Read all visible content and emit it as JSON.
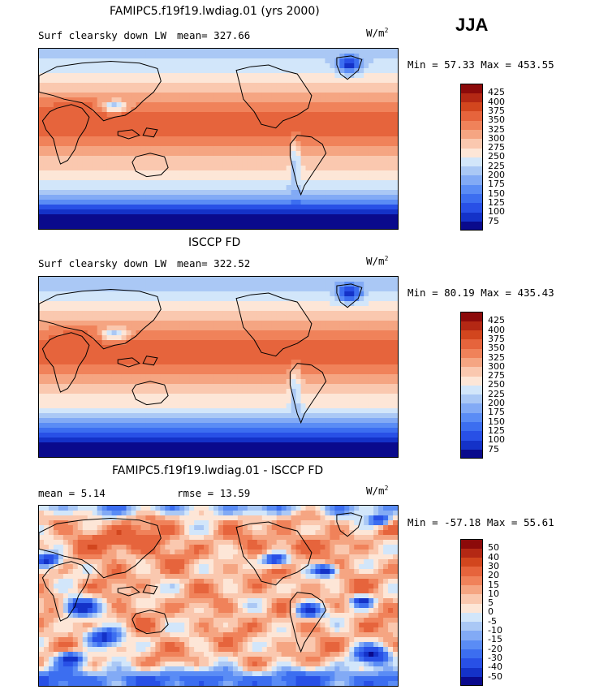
{
  "season": "JJA",
  "units_main": "W/m",
  "units_sup": "2",
  "panels": [
    {
      "title": "FAMIPC5.f19f19.lwdiag.01 (yrs 2000)",
      "variable": "Surf clearsky down LW",
      "mean_label": "mean=",
      "mean_value": "327.66",
      "minmax": "Min =  57.33 Max = 453.55"
    },
    {
      "title": "ISCCP FD",
      "variable": "Surf clearsky down LW",
      "mean_label": "mean=",
      "mean_value": "322.52",
      "minmax": "Min =  80.19 Max = 435.43"
    },
    {
      "title": "FAMIPC5.f19f19.lwdiag.01 - ISCCP FD",
      "mean_label": "mean =",
      "mean_value": "5.14",
      "rmse_label": "rmse =",
      "rmse_value": "13.59",
      "minmax": "Min = -57.18 Max =  55.61"
    }
  ],
  "chart_data": [
    {
      "type": "heatmap",
      "title": "FAMIPC5.f19f19.lwdiag.01 (yrs 2000)",
      "variable": "Surf clearsky down LW",
      "units": "W/m2",
      "mean": 327.66,
      "min": 57.33,
      "max": 453.55,
      "colorbar_levels": [
        75,
        100,
        125,
        150,
        175,
        200,
        225,
        250,
        275,
        300,
        325,
        350,
        375,
        400,
        425
      ],
      "colors": [
        "#0a0a8c",
        "#1432c8",
        "#2850e6",
        "#3c6ef0",
        "#5a8cf5",
        "#82aaf5",
        "#aac8f5",
        "#d2e6fa",
        "#fde6d7",
        "#fac8af",
        "#f5a582",
        "#f0825a",
        "#e6643c",
        "#d2461e",
        "#b42814",
        "#8c0a0a"
      ]
    },
    {
      "type": "heatmap",
      "title": "ISCCP FD",
      "variable": "Surf clearsky down LW",
      "units": "W/m2",
      "mean": 322.52,
      "min": 80.19,
      "max": 435.43,
      "colorbar_levels": [
        75,
        100,
        125,
        150,
        175,
        200,
        225,
        250,
        275,
        300,
        325,
        350,
        375,
        400,
        425
      ],
      "colors": [
        "#0a0a8c",
        "#1432c8",
        "#2850e6",
        "#3c6ef0",
        "#5a8cf5",
        "#82aaf5",
        "#aac8f5",
        "#d2e6fa",
        "#fde6d7",
        "#fac8af",
        "#f5a582",
        "#f0825a",
        "#e6643c",
        "#d2461e",
        "#b42814",
        "#8c0a0a"
      ]
    },
    {
      "type": "heatmap",
      "title": "FAMIPC5.f19f19.lwdiag.01 - ISCCP FD",
      "units": "W/m2",
      "mean": 5.14,
      "rmse": 13.59,
      "min": -57.18,
      "max": 55.61,
      "colorbar_levels": [
        -50,
        -40,
        -30,
        -20,
        -15,
        -10,
        -5,
        0,
        5,
        10,
        15,
        20,
        30,
        40,
        50
      ],
      "colors": [
        "#0a0a8c",
        "#1432c8",
        "#2850e6",
        "#3c6ef0",
        "#5a8cf5",
        "#82aaf5",
        "#aac8f5",
        "#d2e6fa",
        "#fde6d7",
        "#fac8af",
        "#f5a582",
        "#f0825a",
        "#e6643c",
        "#d2461e",
        "#b42814",
        "#8c0a0a"
      ]
    }
  ]
}
